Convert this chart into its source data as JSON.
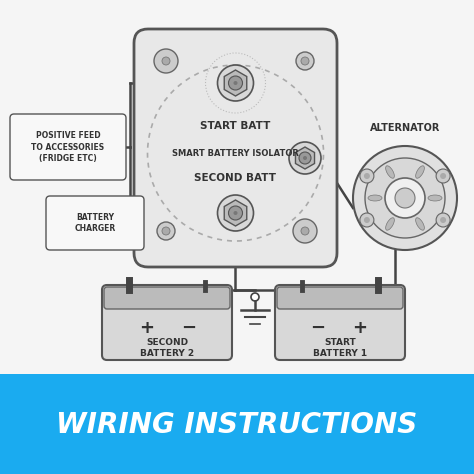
{
  "bg_color": "#f5f5f5",
  "banner_color": "#1aabf0",
  "banner_text": "WIRING INSTRUCTIONS",
  "banner_text_color": "#ffffff",
  "line_color": "#444444",
  "box_fill": "#f0f0f0",
  "box_edge": "#555555",
  "text_color": "#333333",
  "start_batt_label": "START BATT",
  "isolator_label": "SMART BATTERY ISOLATOR",
  "second_batt_label": "SECOND BATT",
  "pos_feed_label": "POSITIVE FEED\nTO ACCESSORIES\n(FRIDGE ETC)",
  "battery_charger_label": "BATTERY\nCHARGER",
  "alternator_label": "ALTERNATOR",
  "second_battery_label": "SECOND\nBATTERY 2",
  "start_battery_label": "START\nBATTERY 1"
}
